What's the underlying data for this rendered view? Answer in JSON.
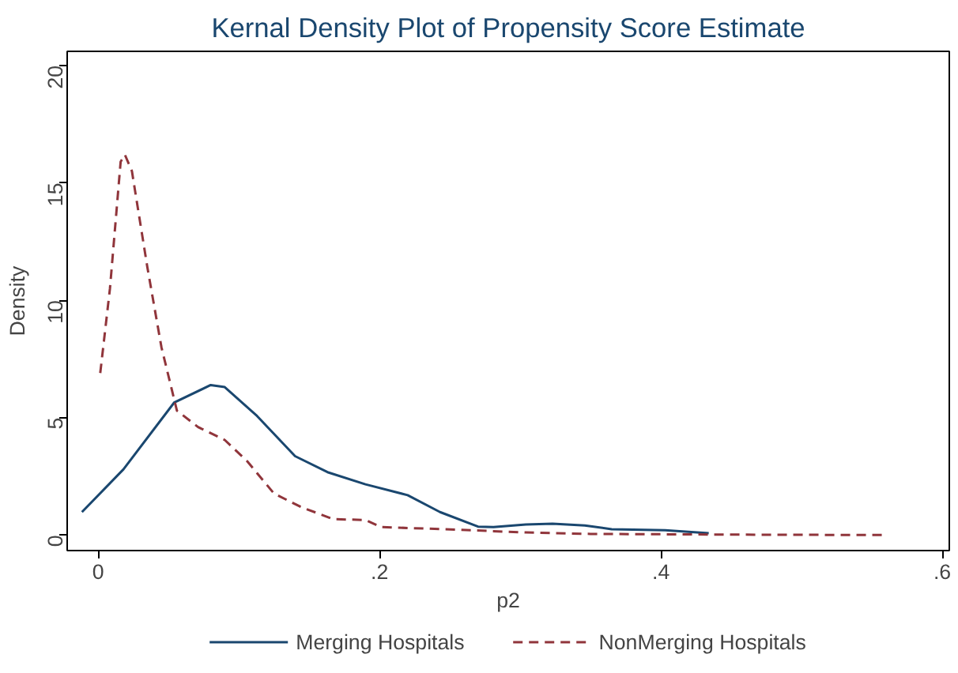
{
  "chart_data": {
    "type": "line",
    "title": "Kernal Density Plot of Propensity Score Estimate",
    "xlabel": "p2",
    "ylabel": "Density",
    "xlim": [
      -0.022,
      0.605
    ],
    "ylim": [
      -0.66,
      20.6
    ],
    "xticks": [
      {
        "value": 0,
        "label": "0"
      },
      {
        "value": 0.2,
        "label": ".2"
      },
      {
        "value": 0.4,
        "label": ".4"
      },
      {
        "value": 0.6,
        "label": ".6"
      }
    ],
    "yticks": [
      0,
      5,
      10,
      15,
      20
    ],
    "grid": false,
    "legend": "bottom",
    "series": [
      {
        "name": "Merging Hospitals",
        "color": "#1a476f",
        "line_style": "solid",
        "x": [
          -0.0115,
          0.018,
          0.054,
          0.08,
          0.09,
          0.113,
          0.14,
          0.163,
          0.19,
          0.22,
          0.243,
          0.27,
          0.281,
          0.304,
          0.323,
          0.346,
          0.365,
          0.403,
          0.434
        ],
        "values": [
          0.98,
          2.8,
          5.64,
          6.39,
          6.3,
          5.07,
          3.36,
          2.68,
          2.16,
          1.7,
          0.98,
          0.36,
          0.34,
          0.45,
          0.48,
          0.41,
          0.25,
          0.21,
          0.08
        ]
      },
      {
        "name": "NonMerging Hospitals",
        "color": "#90353b",
        "line_style": "dashed",
        "x": [
          0.0015,
          0.0084,
          0.016,
          0.019,
          0.024,
          0.035,
          0.045,
          0.056,
          0.071,
          0.09,
          0.106,
          0.125,
          0.144,
          0.167,
          0.19,
          0.201,
          0.247,
          0.304,
          0.35,
          0.45,
          0.56
        ],
        "values": [
          6.9,
          10.5,
          15.9,
          16.2,
          15.5,
          11.4,
          8.0,
          5.3,
          4.6,
          4.05,
          3.14,
          1.77,
          1.2,
          0.68,
          0.64,
          0.34,
          0.25,
          0.11,
          0.05,
          0.02,
          0.0
        ]
      }
    ]
  }
}
